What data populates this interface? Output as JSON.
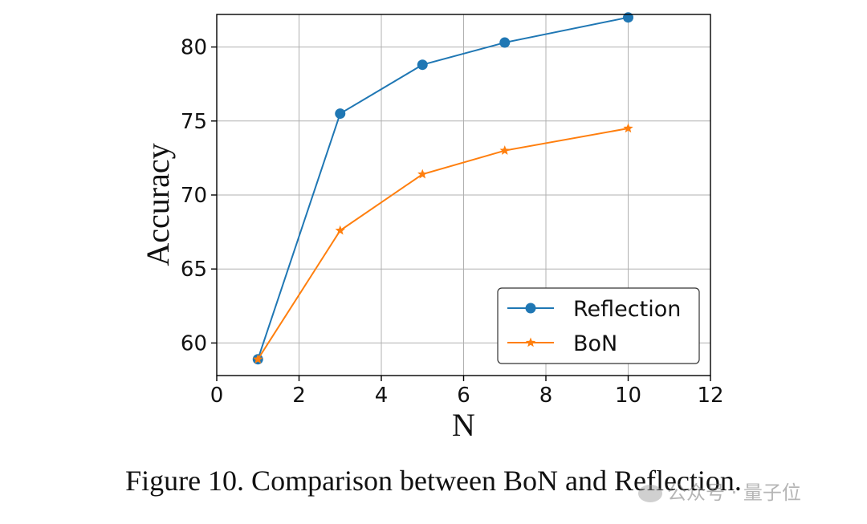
{
  "chart_data": {
    "type": "line",
    "title": "",
    "xlabel": "N",
    "ylabel": "Accuracy",
    "xlim": [
      0,
      12
    ],
    "ylim": [
      57.8,
      82.2
    ],
    "xticks": [
      0,
      2,
      4,
      6,
      8,
      10,
      12
    ],
    "yticks": [
      60,
      65,
      70,
      75,
      80
    ],
    "grid": true,
    "legend_position": "bottom-right",
    "series": [
      {
        "name": "Reflection",
        "color": "#1f77b4",
        "marker": "circle",
        "x": [
          1,
          3,
          5,
          7,
          10
        ],
        "values": [
          58.9,
          75.5,
          78.8,
          80.3,
          82.0
        ]
      },
      {
        "name": "BoN",
        "color": "#ff7f0e",
        "marker": "star",
        "x": [
          1,
          3,
          5,
          7,
          10
        ],
        "values": [
          58.9,
          67.6,
          71.4,
          73.0,
          74.5
        ]
      }
    ]
  },
  "caption": "Figure 10. Comparison between BoN and Reflection.",
  "watermark": "公众号 · 量子位"
}
